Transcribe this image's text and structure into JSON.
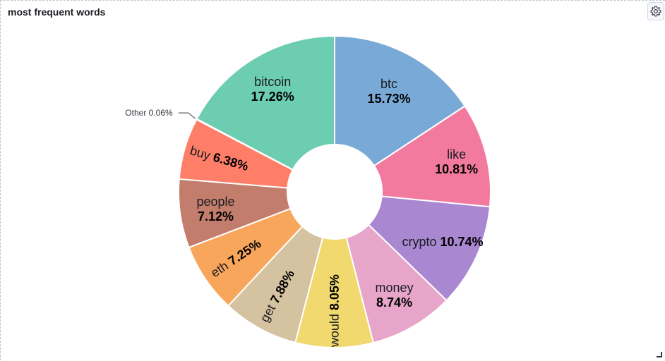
{
  "panel": {
    "title": "most frequent words"
  },
  "icons": {
    "settings": "gear-icon"
  },
  "chart_data": {
    "type": "pie",
    "donut": true,
    "title": "most frequent words",
    "slices": [
      {
        "label": "btc",
        "value": 15.73,
        "display": "15.73%",
        "color": "#79aad7"
      },
      {
        "label": "like",
        "value": 10.81,
        "display": "10.81%",
        "color": "#f37a9f"
      },
      {
        "label": "crypto",
        "value": 10.74,
        "display": "10.74%",
        "color": "#a987d1"
      },
      {
        "label": "money",
        "value": 8.74,
        "display": "8.74%",
        "color": "#e7a6c9"
      },
      {
        "label": "would",
        "value": 8.05,
        "display": "8.05%",
        "color": "#f1d86f"
      },
      {
        "label": "get",
        "value": 7.88,
        "display": "7.88%",
        "color": "#d5c2a0"
      },
      {
        "label": "eth",
        "value": 7.25,
        "display": "7.25%",
        "color": "#f8a65c"
      },
      {
        "label": "people",
        "value": 7.12,
        "display": "7.12%",
        "color": "#c37d6c"
      },
      {
        "label": "buy",
        "value": 6.38,
        "display": "6.38%",
        "color": "#ff7e67"
      },
      {
        "label": "Other",
        "value": 0.06,
        "display": "0.06%",
        "color": "#aaaaaa"
      },
      {
        "label": "bitcoin",
        "value": 17.26,
        "display": "17.26%",
        "color": "#6dcdb1"
      }
    ]
  }
}
